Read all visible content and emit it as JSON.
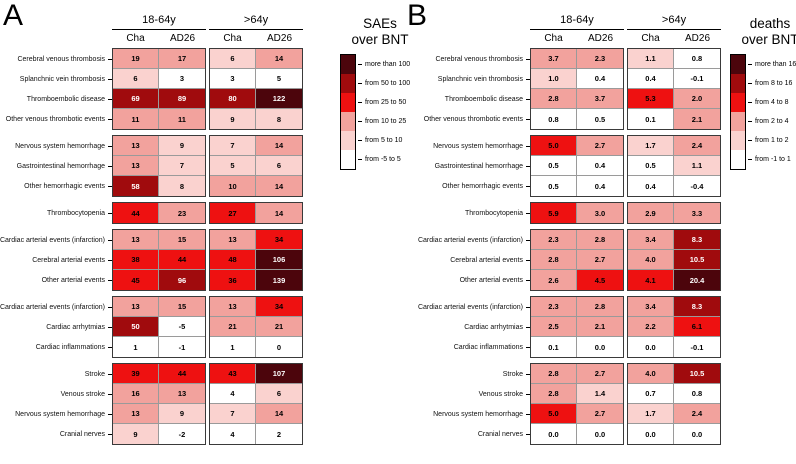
{
  "palette": {
    "levels_low_to_high": [
      "#ffffff",
      "#fad2cf",
      "#f2a29d",
      "#ee1111",
      "#a00b0d",
      "#4c050c"
    ],
    "text_on_dark": "#ffffff",
    "text_on_light": "#000000"
  },
  "chart_data": [
    {
      "type": "heatmap",
      "panel_label": "A",
      "legend_title": [
        "SAEs",
        "over BNT"
      ],
      "age_groups": [
        "18-64y",
        ">64y"
      ],
      "columns": [
        "Cha",
        "AD26",
        "Cha",
        "AD26"
      ],
      "legend_bins": [
        "more than 100",
        "from 50 to 100",
        "from 25 to 50",
        "from 10 to 25",
        "from 5 to 10",
        "from -5 to 5"
      ],
      "row_groups": [
        {
          "rows": [
            {
              "label": "Cerebral venous thrombosis",
              "values": [
                "19",
                "17",
                "6",
                "14"
              ],
              "levels": [
                2,
                2,
                1,
                2
              ]
            },
            {
              "label": "Splanchnic vein thrombosis",
              "values": [
                "6",
                "3",
                "3",
                "5"
              ],
              "levels": [
                1,
                0,
                0,
                0
              ]
            },
            {
              "label": "Thromboembolic disease",
              "values": [
                "69",
                "89",
                "80",
                "122"
              ],
              "levels": [
                4,
                4,
                4,
                5
              ]
            },
            {
              "label": "Other venous thrombotic events",
              "values": [
                "11",
                "11",
                "9",
                "8"
              ],
              "levels": [
                2,
                2,
                1,
                1
              ]
            }
          ]
        },
        {
          "rows": [
            {
              "label": "Nervous system hemorrhage",
              "values": [
                "13",
                "9",
                "7",
                "14"
              ],
              "levels": [
                2,
                1,
                1,
                2
              ]
            },
            {
              "label": "Gastrointestinal hemorrhage",
              "values": [
                "13",
                "7",
                "5",
                "6"
              ],
              "levels": [
                2,
                1,
                1,
                1
              ]
            },
            {
              "label": "Other hemorrhagic events",
              "values": [
                "58",
                "8",
                "10",
                "14"
              ],
              "levels": [
                4,
                1,
                2,
                2
              ]
            }
          ]
        },
        {
          "rows": [
            {
              "label": "Thrombocytopenia",
              "values": [
                "44",
                "23",
                "27",
                "14"
              ],
              "levels": [
                3,
                2,
                3,
                2
              ]
            }
          ]
        },
        {
          "rows": [
            {
              "label": "Cardiac arterial events (infarction)",
              "values": [
                "13",
                "15",
                "13",
                "34"
              ],
              "levels": [
                2,
                2,
                2,
                3
              ]
            },
            {
              "label": "Cerebral arterial events",
              "values": [
                "38",
                "44",
                "48",
                "106"
              ],
              "levels": [
                3,
                3,
                3,
                5
              ]
            },
            {
              "label": "Other arterial events",
              "values": [
                "45",
                "96",
                "36",
                "139"
              ],
              "levels": [
                3,
                4,
                3,
                5
              ]
            }
          ]
        },
        {
          "rows": [
            {
              "label": "Cardiac arterial events (infarction)",
              "values": [
                "13",
                "15",
                "13",
                "34"
              ],
              "levels": [
                2,
                2,
                2,
                3
              ]
            },
            {
              "label": "Cardiac arrhytmias",
              "values": [
                "50",
                "-5",
                "21",
                "21"
              ],
              "levels": [
                4,
                0,
                2,
                2
              ]
            },
            {
              "label": "Cardiac inflammations",
              "values": [
                "1",
                "-1",
                "1",
                "0"
              ],
              "levels": [
                0,
                0,
                0,
                0
              ]
            }
          ]
        },
        {
          "rows": [
            {
              "label": "Stroke",
              "values": [
                "39",
                "44",
                "43",
                "107"
              ],
              "levels": [
                3,
                3,
                3,
                5
              ]
            },
            {
              "label": "Venous stroke",
              "values": [
                "16",
                "13",
                "4",
                "6"
              ],
              "levels": [
                2,
                2,
                0,
                1
              ]
            },
            {
              "label": "Nervous system hemorrhage",
              "values": [
                "13",
                "9",
                "7",
                "14"
              ],
              "levels": [
                2,
                1,
                1,
                2
              ]
            },
            {
              "label": "Cranial nerves",
              "values": [
                "9",
                "-2",
                "4",
                "2"
              ],
              "levels": [
                1,
                0,
                0,
                0
              ]
            }
          ]
        }
      ]
    },
    {
      "type": "heatmap",
      "panel_label": "B",
      "legend_title": [
        "deaths",
        "over BNT"
      ],
      "age_groups": [
        "18-64y",
        ">64y"
      ],
      "columns": [
        "Cha",
        "AD26",
        "Cha",
        "AD26"
      ],
      "legend_bins": [
        "more than 16",
        "from 8 to 16",
        "from 4 to 8",
        "from 2 to 4",
        "from 1 to 2",
        "from -1 to 1"
      ],
      "row_groups": [
        {
          "rows": [
            {
              "label": "Cerebral venous thrombosis",
              "values": [
                "3.7",
                "2.3",
                "1.1",
                "0.8"
              ],
              "levels": [
                2,
                2,
                1,
                0
              ]
            },
            {
              "label": "Splanchnic vein thrombosis",
              "values": [
                "1.0",
                "0.4",
                "0.4",
                "-0.1"
              ],
              "levels": [
                1,
                0,
                0,
                0
              ]
            },
            {
              "label": "Thromboembolic disease",
              "values": [
                "2.8",
                "3.7",
                "5.3",
                "2.0"
              ],
              "levels": [
                2,
                2,
                3,
                2
              ]
            },
            {
              "label": "Other venous thrombotic events",
              "values": [
                "0.8",
                "0.5",
                "0.1",
                "2.1"
              ],
              "levels": [
                0,
                0,
                0,
                2
              ]
            }
          ]
        },
        {
          "rows": [
            {
              "label": "Nervous system hemorrhage",
              "values": [
                "5.0",
                "2.7",
                "1.7",
                "2.4"
              ],
              "levels": [
                3,
                2,
                1,
                2
              ]
            },
            {
              "label": "Gastrointestinal hemorrhage",
              "values": [
                "0.5",
                "0.4",
                "0.5",
                "1.1"
              ],
              "levels": [
                0,
                0,
                0,
                1
              ]
            },
            {
              "label": "Other hemorrhagic events",
              "values": [
                "0.5",
                "0.4",
                "0.4",
                "-0.4"
              ],
              "levels": [
                0,
                0,
                0,
                0
              ]
            }
          ]
        },
        {
          "rows": [
            {
              "label": "Thrombocytopenia",
              "values": [
                "5.9",
                "3.0",
                "2.9",
                "3.3"
              ],
              "levels": [
                3,
                2,
                2,
                2
              ]
            }
          ]
        },
        {
          "rows": [
            {
              "label": "Cardiac arterial events (infarction)",
              "values": [
                "2.3",
                "2.8",
                "3.4",
                "8.3"
              ],
              "levels": [
                2,
                2,
                2,
                4
              ]
            },
            {
              "label": "Cerebral arterial events",
              "values": [
                "2.8",
                "2.7",
                "4.0",
                "10.5"
              ],
              "levels": [
                2,
                2,
                2,
                4
              ]
            },
            {
              "label": "Other arterial events",
              "values": [
                "2.6",
                "4.5",
                "4.1",
                "20.4"
              ],
              "levels": [
                2,
                3,
                3,
                5
              ]
            }
          ]
        },
        {
          "rows": [
            {
              "label": "Cardiac arterial events (infarction)",
              "values": [
                "2.3",
                "2.8",
                "3.4",
                "8.3"
              ],
              "levels": [
                2,
                2,
                2,
                4
              ]
            },
            {
              "label": "Cardiac arrhytmias",
              "values": [
                "2.5",
                "2.1",
                "2.2",
                "6.1"
              ],
              "levels": [
                2,
                2,
                2,
                3
              ]
            },
            {
              "label": "Cardiac inflammations",
              "values": [
                "0.1",
                "0.0",
                "0.0",
                "-0.1"
              ],
              "levels": [
                0,
                0,
                0,
                0
              ]
            }
          ]
        },
        {
          "rows": [
            {
              "label": "Stroke",
              "values": [
                "2.8",
                "2.7",
                "4.0",
                "10.5"
              ],
              "levels": [
                2,
                2,
                2,
                4
              ]
            },
            {
              "label": "Venous stroke",
              "values": [
                "2.8",
                "1.4",
                "0.7",
                "0.8"
              ],
              "levels": [
                2,
                1,
                0,
                0
              ]
            },
            {
              "label": "Nervous system hemorrhage",
              "values": [
                "5.0",
                "2.7",
                "1.7",
                "2.4"
              ],
              "levels": [
                3,
                2,
                1,
                2
              ]
            },
            {
              "label": "Cranial nerves",
              "values": [
                "0.0",
                "0.0",
                "0.0",
                "0.0"
              ],
              "levels": [
                0,
                0,
                0,
                0
              ]
            }
          ]
        }
      ]
    }
  ]
}
